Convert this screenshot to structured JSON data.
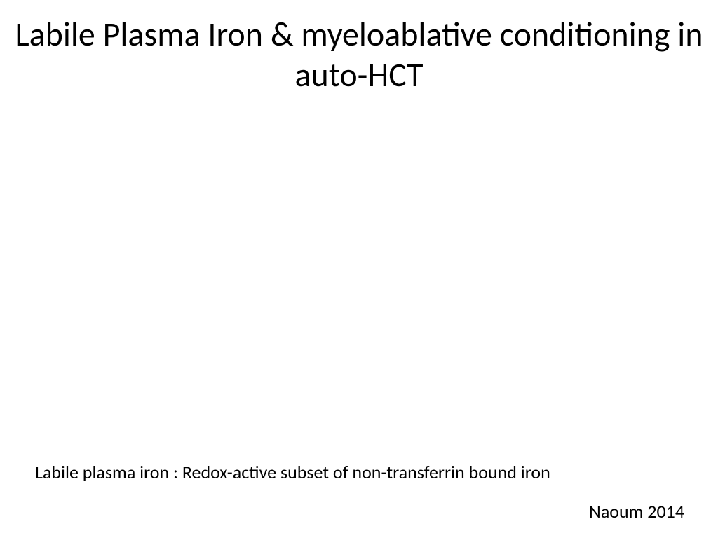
{
  "slide": {
    "title": "Labile Plasma Iron & myeloablative conditioning in auto-HCT",
    "footnote": "Labile plasma iron : Redox-active subset of non-transferrin bound iron",
    "citation": "Naoum 2014",
    "background_color": "#ffffff",
    "text_color": "#000000",
    "title_fontsize": 48,
    "body_fontsize": 26,
    "font_family": "Calibri"
  }
}
